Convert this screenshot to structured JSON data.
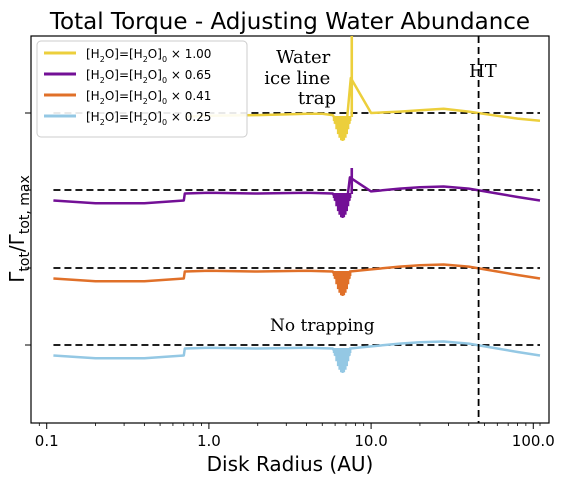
{
  "chart_data": {
    "type": "line",
    "title": "Total Torque - Adjusting Water Abundance",
    "xlabel": "Disk Radius (AU)",
    "ylabel_main": "Γ",
    "ylabel_sub": "tot",
    "ylabel_den_main": "/Γ",
    "ylabel_den_sub": "tot, max",
    "x_scale": "log",
    "xlim": [
      0.08,
      125
    ],
    "x_ticks": [
      {
        "value": 0.1,
        "label": "0.1"
      },
      {
        "value": 1.0,
        "label": "1.0"
      },
      {
        "value": 10.0,
        "label": "10.0"
      },
      {
        "value": 100.0,
        "label": "100.0"
      }
    ],
    "y_tick_labels_shown": false,
    "legend_position": "upper-left",
    "grid": false,
    "annotations": [
      {
        "lines": [
          "Water",
          "ice line",
          "trap"
        ],
        "x": 5.0
      },
      {
        "lines": [
          "HT"
        ],
        "x": 50.0
      },
      {
        "lines": [
          "No trapping"
        ],
        "x": 5.0
      }
    ],
    "vertical_line": {
      "x": 46.0,
      "style": "dashed",
      "label": "HT"
    },
    "series": [
      {
        "name": "[H2O]=[H2O]0 × 1.00",
        "legend": {
          "pre": "[H",
          "s1": "2",
          "mid": "O]=[H",
          "s2": "2",
          "mid2": "O]",
          "s3": "0",
          "post": " × 1.00"
        },
        "color": "#eccf3c",
        "offset_level": 3,
        "trap": true,
        "x": [
          0.73,
          1.0,
          2.0,
          3.0,
          4.0,
          5.0,
          5.8,
          6.5,
          7.0,
          7.5,
          10.0,
          15.0,
          20.0,
          28.0,
          40.0,
          60.0,
          80.0,
          110.0
        ],
        "y": [
          -0.05,
          -0.04,
          -0.03,
          -0.02,
          -0.01,
          -0.01,
          -0.03,
          -0.2,
          -0.25,
          0.5,
          0.0,
          0.02,
          0.04,
          0.06,
          0.02,
          -0.04,
          -0.08,
          -0.11
        ]
      },
      {
        "name": "[H2O]=[H2O]0 × 0.65",
        "legend": {
          "pre": "[H",
          "s1": "2",
          "mid": "O]=[H",
          "s2": "2",
          "mid2": "O]",
          "s3": "0",
          "post": " × 0.65"
        },
        "color": "#731096",
        "offset_level": 2,
        "trap": true,
        "x": [
          0.11,
          0.2,
          0.4,
          0.7,
          0.71,
          1.0,
          2.0,
          4.0,
          5.8,
          6.5,
          7.0,
          7.4,
          10.0,
          15.0,
          20.0,
          28.0,
          40.0,
          60.0,
          80.0,
          110.0
        ],
        "y": [
          -0.15,
          -0.19,
          -0.19,
          -0.15,
          -0.05,
          -0.04,
          -0.05,
          -0.04,
          -0.05,
          -0.22,
          -0.28,
          0.18,
          -0.02,
          0.02,
          0.04,
          0.05,
          0.02,
          -0.05,
          -0.1,
          -0.15
        ]
      },
      {
        "name": "[H2O]=[H2O]0 × 0.41",
        "legend": {
          "pre": "[H",
          "s1": "2",
          "mid": "O]=[H",
          "s2": "2",
          "mid2": "O]",
          "s3": "0",
          "post": " × 0.41"
        },
        "color": "#e07029",
        "offset_level": 1,
        "trap": false,
        "x": [
          0.11,
          0.2,
          0.4,
          0.7,
          0.71,
          1.0,
          2.0,
          4.0,
          5.8,
          6.5,
          7.0,
          7.4,
          10.0,
          15.0,
          20.0,
          28.0,
          40.0,
          60.0,
          80.0,
          110.0
        ],
        "y": [
          -0.15,
          -0.19,
          -0.19,
          -0.15,
          -0.05,
          -0.04,
          -0.05,
          -0.04,
          -0.05,
          -0.22,
          -0.28,
          -0.05,
          -0.02,
          0.02,
          0.04,
          0.05,
          0.02,
          -0.05,
          -0.1,
          -0.15
        ]
      },
      {
        "name": "[H2O]=[H2O]0 × 0.25",
        "legend": {
          "pre": "[H",
          "s1": "2",
          "mid": "O]=[H",
          "s2": "2",
          "mid2": "O]",
          "s3": "0",
          "post": " × 0.25"
        },
        "color": "#94c8e4",
        "offset_level": 0,
        "trap": false,
        "x": [
          0.11,
          0.2,
          0.4,
          0.7,
          0.71,
          1.0,
          2.0,
          4.0,
          5.8,
          6.5,
          7.0,
          7.4,
          10.0,
          15.0,
          20.0,
          28.0,
          40.0,
          60.0,
          80.0,
          110.0
        ],
        "y": [
          -0.15,
          -0.19,
          -0.19,
          -0.15,
          -0.05,
          -0.04,
          -0.05,
          -0.04,
          -0.05,
          -0.22,
          -0.28,
          -0.05,
          -0.02,
          0.02,
          0.04,
          0.05,
          0.02,
          -0.05,
          -0.1,
          -0.15
        ]
      }
    ]
  }
}
